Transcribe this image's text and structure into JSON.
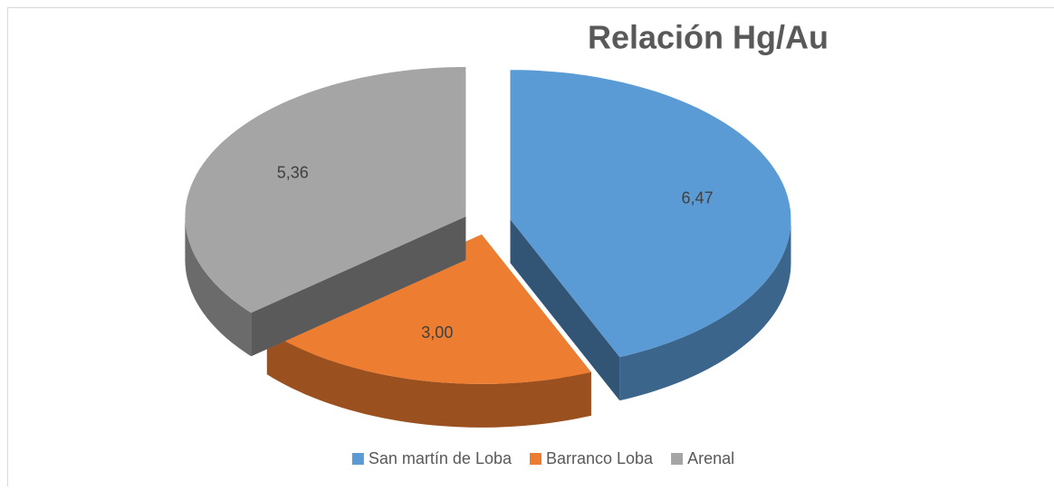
{
  "chart_data": {
    "type": "pie",
    "title": "Relación Hg/Au",
    "categories": [
      "San martín de Loba",
      "Barranco Loba",
      "Arenal"
    ],
    "values": [
      6.47,
      3.0,
      5.36
    ],
    "value_labels": [
      "6,47",
      "3,00",
      "5,36"
    ],
    "colors": [
      "#5b9bd5",
      "#ed7d31",
      "#a5a5a5"
    ],
    "legend": "bottom"
  }
}
